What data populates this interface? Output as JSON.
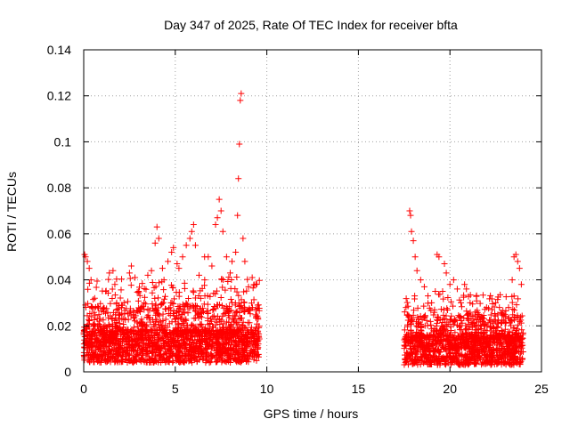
{
  "chart_data": {
    "type": "scatter",
    "title": "Day 347 of 2025, Rate Of TEC Index for receiver bfta",
    "xlabel": "GPS time / hours",
    "ylabel": "ROTI / TECUs",
    "xlim": [
      0,
      25
    ],
    "ylim": [
      0,
      0.14
    ],
    "x_ticks": [
      0,
      5,
      10,
      15,
      20,
      25
    ],
    "x_tick_labels": [
      "0",
      "5",
      "10",
      "15",
      "20",
      "25"
    ],
    "y_ticks": [
      0,
      0.02,
      0.04,
      0.06,
      0.08,
      0.1,
      0.12,
      0.14
    ],
    "y_tick_labels": [
      "0",
      "0.02",
      "0.04",
      "0.06",
      "0.08",
      "0.1",
      "0.12",
      "0.14"
    ],
    "grid": true,
    "marker": "+",
    "colors": {
      "series": "#ff0000",
      "grid": "#a0a0a0",
      "axis": "#000000"
    },
    "series": [
      {
        "name": "ROTI",
        "points": [
          [
            0.05,
            0.051
          ],
          [
            0.1,
            0.05
          ],
          [
            0.2,
            0.048
          ],
          [
            0.3,
            0.045
          ],
          [
            0.4,
            0.04
          ],
          [
            0.6,
            0.032
          ],
          [
            1.2,
            0.035
          ],
          [
            1.4,
            0.043
          ],
          [
            1.6,
            0.044
          ],
          [
            1.7,
            0.038
          ],
          [
            1.8,
            0.03
          ],
          [
            2.2,
            0.03
          ],
          [
            2.5,
            0.043
          ],
          [
            2.6,
            0.046
          ],
          [
            2.8,
            0.041
          ],
          [
            3.0,
            0.035
          ],
          [
            3.3,
            0.03
          ],
          [
            3.5,
            0.042
          ],
          [
            3.7,
            0.044
          ],
          [
            3.9,
            0.056
          ],
          [
            4.0,
            0.063
          ],
          [
            4.1,
            0.058
          ],
          [
            4.3,
            0.045
          ],
          [
            4.6,
            0.048
          ],
          [
            4.8,
            0.052
          ],
          [
            4.9,
            0.054
          ],
          [
            5.1,
            0.047
          ],
          [
            5.2,
            0.045
          ],
          [
            5.4,
            0.05
          ],
          [
            5.6,
            0.055
          ],
          [
            5.8,
            0.058
          ],
          [
            5.9,
            0.061
          ],
          [
            6.0,
            0.064
          ],
          [
            6.1,
            0.055
          ],
          [
            6.3,
            0.042
          ],
          [
            6.6,
            0.05
          ],
          [
            6.8,
            0.05
          ],
          [
            7.0,
            0.046
          ],
          [
            7.2,
            0.064
          ],
          [
            7.3,
            0.067
          ],
          [
            7.4,
            0.075
          ],
          [
            7.5,
            0.07
          ],
          [
            7.6,
            0.061
          ],
          [
            7.8,
            0.05
          ],
          [
            8.0,
            0.043
          ],
          [
            8.1,
            0.048
          ],
          [
            8.3,
            0.052
          ],
          [
            8.4,
            0.068
          ],
          [
            8.45,
            0.084
          ],
          [
            8.5,
            0.099
          ],
          [
            8.55,
            0.118
          ],
          [
            8.6,
            0.121
          ],
          [
            8.7,
            0.058
          ],
          [
            8.8,
            0.048
          ],
          [
            9.0,
            0.037
          ],
          [
            9.2,
            0.041
          ],
          [
            9.4,
            0.038
          ],
          [
            9.5,
            0.029
          ],
          [
            17.6,
            0.028
          ],
          [
            17.8,
            0.07
          ],
          [
            17.85,
            0.068
          ],
          [
            17.9,
            0.061
          ],
          [
            18.0,
            0.057
          ],
          [
            18.1,
            0.05
          ],
          [
            18.2,
            0.044
          ],
          [
            18.4,
            0.04
          ],
          [
            18.6,
            0.037
          ],
          [
            18.8,
            0.033
          ],
          [
            19.0,
            0.03
          ],
          [
            19.2,
            0.035
          ],
          [
            19.3,
            0.051
          ],
          [
            19.4,
            0.05
          ],
          [
            19.6,
            0.035
          ],
          [
            19.7,
            0.047
          ],
          [
            19.8,
            0.043
          ],
          [
            20.0,
            0.038
          ],
          [
            20.2,
            0.04
          ],
          [
            20.4,
            0.036
          ],
          [
            20.6,
            0.03
          ],
          [
            20.8,
            0.038
          ],
          [
            20.9,
            0.036
          ],
          [
            21.1,
            0.03
          ],
          [
            21.4,
            0.026
          ],
          [
            21.7,
            0.024
          ],
          [
            22.0,
            0.028
          ],
          [
            22.3,
            0.027
          ],
          [
            22.5,
            0.03
          ],
          [
            22.7,
            0.028
          ],
          [
            23.0,
            0.025
          ],
          [
            23.2,
            0.028
          ],
          [
            23.4,
            0.04
          ],
          [
            23.5,
            0.05
          ],
          [
            23.6,
            0.051
          ],
          [
            23.7,
            0.048
          ],
          [
            23.8,
            0.045
          ],
          [
            23.9,
            0.038
          ]
        ],
        "envelope": [
          {
            "x_range": [
              0.0,
              9.6
            ],
            "y_min": 0.004,
            "y_base": 0.016,
            "y_dense_max": 0.03
          },
          {
            "x_range": [
              17.5,
              24.0
            ],
            "y_min": 0.003,
            "y_base": 0.014,
            "y_dense_max": 0.025
          }
        ]
      }
    ]
  }
}
